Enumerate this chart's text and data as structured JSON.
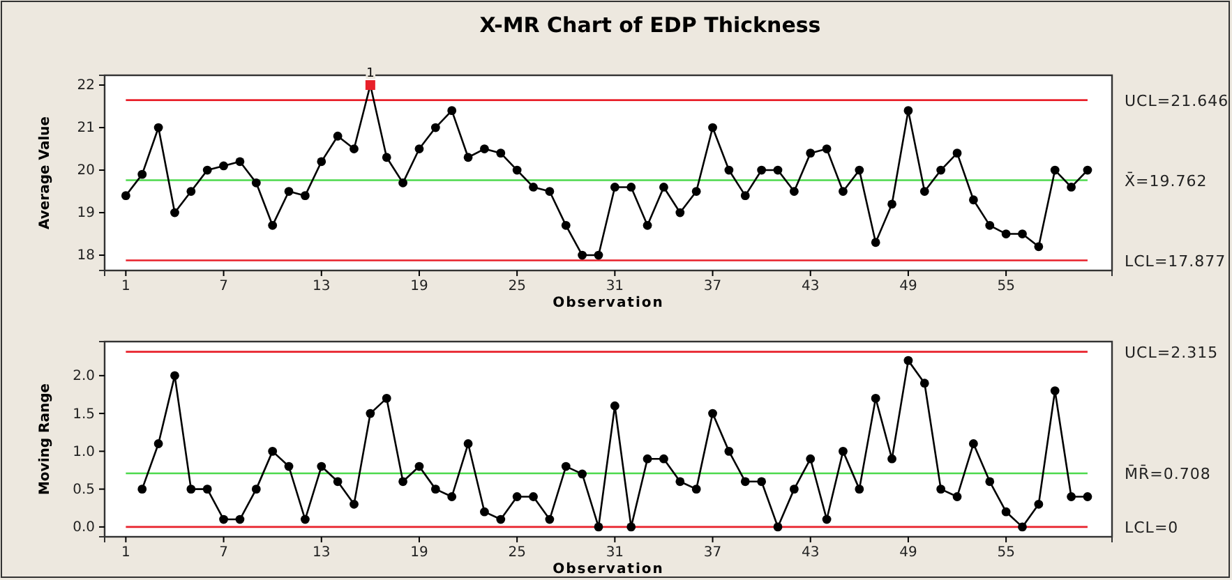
{
  "chart_data": [
    {
      "type": "line",
      "title": "X-MR Chart of EDP Thickness",
      "xlabel": "Observation",
      "ylabel": "Average Value",
      "marker": "circle",
      "line_style": "solid",
      "grid": false,
      "x": [
        1,
        2,
        3,
        4,
        5,
        6,
        7,
        8,
        9,
        10,
        11,
        12,
        13,
        14,
        15,
        16,
        17,
        18,
        19,
        20,
        21,
        22,
        23,
        24,
        25,
        26,
        27,
        28,
        29,
        30,
        31,
        32,
        33,
        34,
        35,
        36,
        37,
        38,
        39,
        40,
        41,
        42,
        43,
        44,
        45,
        46,
        47,
        48,
        49,
        50,
        51,
        52,
        53,
        54,
        55,
        56,
        57,
        58,
        59,
        60
      ],
      "xlim": [
        -0.3,
        61.5
      ],
      "xticks": [
        1,
        7,
        13,
        19,
        25,
        31,
        37,
        43,
        49,
        55
      ],
      "ylim": [
        17.64,
        22.23
      ],
      "yticks": [
        18,
        19,
        20,
        21,
        22
      ],
      "series": [
        {
          "color": "#000000",
          "colors": [
            "#000000",
            "#000000",
            "#000000",
            "#000000",
            "#000000",
            "#000000",
            "#000000",
            "#000000",
            "#000000",
            "#000000",
            "#000000",
            "#000000",
            "#000000",
            "#000000",
            "#000000",
            "#e8202a",
            "#000000",
            "#000000",
            "#000000",
            "#000000",
            "#000000",
            "#000000",
            "#000000",
            "#000000",
            "#000000",
            "#000000",
            "#000000",
            "#000000",
            "#000000",
            "#000000",
            "#000000",
            "#000000",
            "#000000",
            "#000000",
            "#000000",
            "#000000",
            "#000000",
            "#000000",
            "#000000",
            "#000000",
            "#000000",
            "#000000",
            "#000000",
            "#000000",
            "#000000",
            "#000000",
            "#000000",
            "#000000",
            "#000000",
            "#000000",
            "#000000",
            "#000000",
            "#000000",
            "#000000",
            "#000000",
            "#000000",
            "#000000",
            "#000000",
            "#000000",
            "#000000"
          ],
          "values": [
            19.4,
            19.9,
            21.0,
            19.0,
            19.5,
            20.0,
            20.1,
            20.2,
            19.7,
            18.7,
            19.5,
            19.4,
            20.2,
            20.8,
            20.5,
            22.0,
            20.3,
            19.7,
            20.5,
            21.0,
            21.4,
            20.3,
            20.5,
            20.4,
            20.0,
            19.6,
            19.5,
            18.7,
            18.0,
            18.0,
            19.6,
            19.6,
            18.7,
            19.6,
            19.0,
            19.5,
            21.0,
            20.0,
            19.4,
            20.0,
            20.0,
            19.5,
            20.4,
            20.5,
            19.5,
            20.0,
            18.3,
            19.2,
            21.4,
            19.5,
            20.0,
            20.4,
            19.3,
            18.7,
            18.5,
            18.5,
            18.2,
            20.0,
            19.6,
            20.0
          ]
        }
      ],
      "ref_lines": [
        {
          "axis": "y",
          "value": 21.646,
          "label": "UCL=21.646",
          "color": "#e8202a"
        },
        {
          "axis": "y",
          "value": 19.762,
          "label": "X̄=19.762",
          "color": "#4cd94c"
        },
        {
          "axis": "y",
          "value": 17.877,
          "label": "LCL=17.877",
          "color": "#e8202a"
        }
      ],
      "annotations": [
        {
          "text": "1",
          "x": 16,
          "y": 22.0
        }
      ]
    },
    {
      "type": "line",
      "xlabel": "Observation",
      "ylabel": "Moving Range",
      "marker": "circle",
      "line_style": "solid",
      "grid": false,
      "xlim": [
        -0.3,
        61.5
      ],
      "xticks": [
        1,
        7,
        13,
        19,
        25,
        31,
        37,
        43,
        49,
        55
      ],
      "ylim": [
        -0.13,
        2.45
      ],
      "yticks": [
        {
          "value": 0,
          "label": "0.0"
        },
        {
          "value": 0.5,
          "label": "0.5"
        },
        {
          "value": 1,
          "label": "1.0"
        },
        {
          "value": 1.5,
          "label": "1.5"
        },
        {
          "value": 2,
          "label": "2.0"
        }
      ],
      "series": [
        {
          "color": "#000000",
          "x": [
            2,
            3,
            4,
            5,
            6,
            7,
            8,
            9,
            10,
            11,
            12,
            13,
            14,
            15,
            16,
            17,
            18,
            19,
            20,
            21,
            22,
            23,
            24,
            25,
            26,
            27,
            28,
            29,
            30,
            31,
            32,
            33,
            34,
            35,
            36,
            37,
            38,
            39,
            40,
            41,
            42,
            43,
            44,
            45,
            46,
            47,
            48,
            49,
            50,
            51,
            52,
            53,
            54,
            55,
            56,
            57,
            58,
            59,
            60
          ],
          "values": [
            0.5,
            1.1,
            2.0,
            0.5,
            0.5,
            0.1,
            0.1,
            0.5,
            1.0,
            0.8,
            0.1,
            0.8,
            0.6,
            0.3,
            1.5,
            1.7,
            0.6,
            0.8,
            0.5,
            0.4,
            1.1,
            0.2,
            0.1,
            0.4,
            0.4,
            0.1,
            0.8,
            0.7,
            0,
            1.6,
            0,
            0.9,
            0.9,
            0.6,
            0.5,
            1.5,
            1.0,
            0.6,
            0.6,
            0,
            0.5,
            0.9,
            0.1,
            1.0,
            0.5,
            1.7,
            0.9,
            2.2,
            1.9,
            0.5,
            0.4,
            1.1,
            0.6,
            0.2,
            0,
            0.3,
            1.8,
            0.4,
            0.4
          ]
        }
      ],
      "ref_lines": [
        {
          "axis": "y",
          "value": 2.315,
          "label": "UCL=2.315",
          "color": "#e8202a"
        },
        {
          "axis": "y",
          "value": 0.708,
          "label": "M̄R̄=0.708",
          "color": "#4cd94c"
        },
        {
          "axis": "y",
          "value": 0,
          "label": "LCL=0",
          "color": "#e8202a"
        }
      ]
    }
  ]
}
